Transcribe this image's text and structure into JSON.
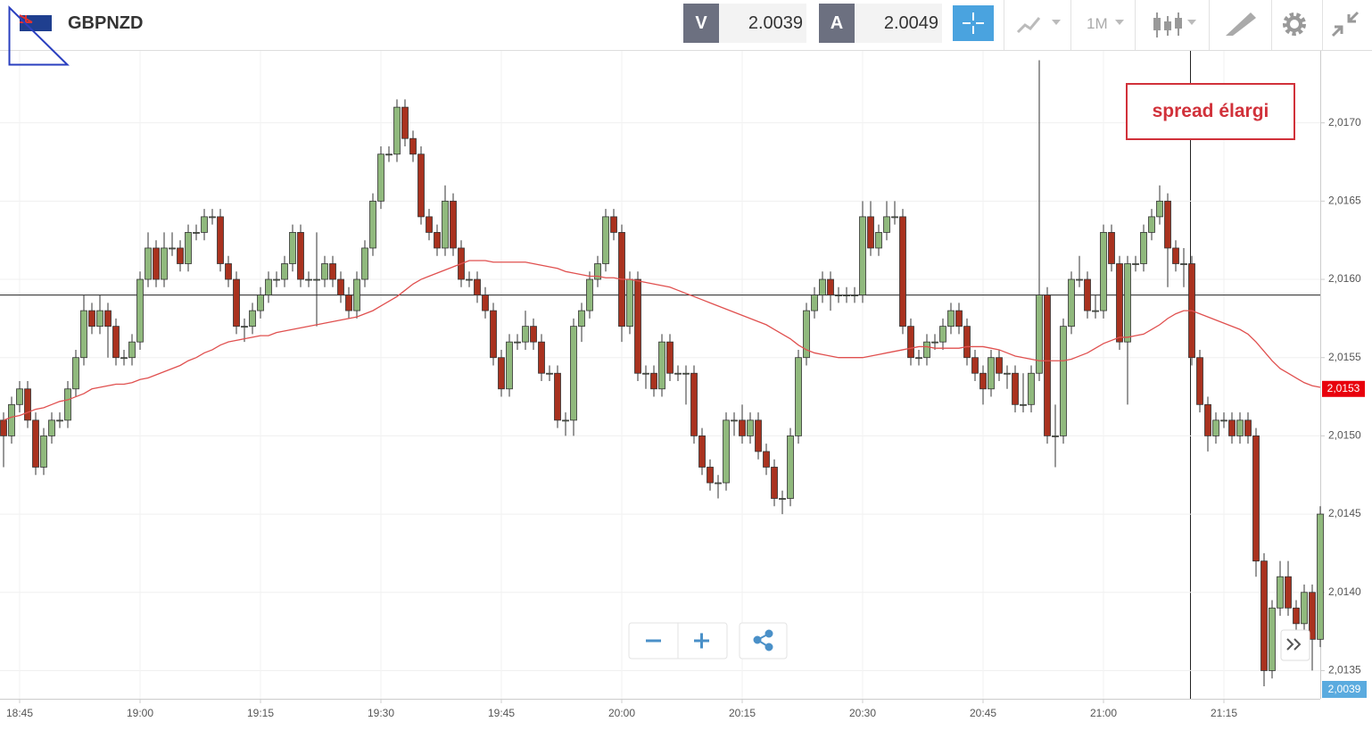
{
  "header": {
    "symbol": "GBPNZD",
    "sell_label": "V",
    "sell_price": "2.0039",
    "buy_label": "A",
    "buy_price": "2.0049",
    "timeframe": "1M"
  },
  "chart_data": {
    "type": "candlestick",
    "categories": [
      null,
      null,
      "18:45",
      null,
      null,
      null,
      null,
      null,
      null,
      null,
      null,
      null,
      null,
      null,
      null,
      null,
      null,
      "19:00",
      null,
      null,
      null,
      null,
      null,
      null,
      null,
      null,
      null,
      null,
      null,
      null,
      null,
      null,
      "19:15",
      null,
      null,
      null,
      null,
      null,
      null,
      null,
      null,
      null,
      null,
      null,
      null,
      null,
      null,
      "19:30",
      null,
      null,
      null,
      null,
      null,
      null,
      null,
      null,
      null,
      null,
      null,
      null,
      null,
      null,
      "19:45",
      null,
      null,
      null,
      null,
      null,
      null,
      null,
      null,
      null,
      null,
      null,
      null,
      null,
      null,
      "20:00",
      null,
      null,
      null,
      null,
      null,
      null,
      null,
      null,
      null,
      null,
      null,
      null,
      null,
      null,
      "20:15",
      null,
      null,
      null,
      null,
      null,
      null,
      null,
      null,
      null,
      null,
      null,
      null,
      null,
      null,
      "20:30",
      null,
      null,
      null,
      null,
      null,
      null,
      null,
      null,
      null,
      null,
      null,
      null,
      null,
      null,
      "20:45",
      null,
      null,
      null,
      null,
      null,
      null,
      null,
      null,
      null,
      null,
      null,
      null,
      null,
      null,
      "21:00",
      null,
      null,
      null,
      null,
      null,
      null,
      null,
      null,
      null,
      null,
      null,
      null,
      null,
      null,
      "21:15",
      null,
      null,
      null,
      null,
      null,
      null,
      null,
      null,
      null,
      null,
      null,
      null
    ],
    "open": [
      2.0151,
      2.015,
      2.0152,
      2.0153,
      2.0151,
      2.0148,
      2.015,
      2.0151,
      2.0151,
      2.0153,
      2.0155,
      2.0158,
      2.0157,
      2.0158,
      2.0157,
      2.0155,
      2.0155,
      2.0156,
      2.016,
      2.0162,
      2.016,
      2.0162,
      2.0162,
      2.0161,
      2.0163,
      2.0163,
      2.0164,
      2.0164,
      2.0161,
      2.016,
      2.0157,
      2.0157,
      2.0158,
      2.0159,
      2.016,
      2.016,
      2.0161,
      2.0163,
      2.016,
      2.016,
      2.016,
      2.0161,
      2.016,
      2.0159,
      2.0158,
      2.016,
      2.0162,
      2.0165,
      2.0168,
      2.0168,
      2.0171,
      2.0169,
      2.0168,
      2.0164,
      2.0163,
      2.0162,
      2.0165,
      2.0162,
      2.016,
      2.016,
      2.0159,
      2.0158,
      2.0155,
      2.0153,
      2.0156,
      2.0156,
      2.0157,
      2.0156,
      2.0154,
      2.0154,
      2.0151,
      2.0151,
      2.0157,
      2.0158,
      2.016,
      2.0161,
      2.0164,
      2.0163,
      2.0157,
      2.016,
      2.0154,
      2.0154,
      2.0153,
      2.0156,
      2.0154,
      2.0154,
      2.0154,
      2.015,
      2.0148,
      2.0147,
      2.0147,
      2.0151,
      2.0151,
      2.015,
      2.0151,
      2.0149,
      2.0148,
      2.0146,
      2.0146,
      2.015,
      2.0155,
      2.0158,
      2.0159,
      2.016,
      2.0159,
      2.0159,
      2.0159,
      2.0159,
      2.0164,
      2.0162,
      2.0163,
      2.0164,
      2.0164,
      2.0157,
      2.0155,
      2.0155,
      2.0156,
      2.0156,
      2.0157,
      2.0158,
      2.0157,
      2.0155,
      2.0154,
      2.0153,
      2.0155,
      2.0154,
      2.0154,
      2.0152,
      2.0152,
      2.0154,
      2.0159,
      2.015,
      2.015,
      2.0157,
      2.016,
      2.016,
      2.0158,
      2.0158,
      2.0163,
      2.0161,
      2.0156,
      2.0161,
      2.0161,
      2.0163,
      2.0164,
      2.0165,
      2.0162,
      2.0161,
      2.0161,
      2.0155,
      2.0152,
      2.015,
      2.0151,
      2.0151,
      2.015,
      2.0151,
      2.015,
      2.0142,
      2.0135,
      2.0139,
      2.0141,
      2.0139,
      2.0138,
      2.014,
      2.0137
    ],
    "high": [
      2.01515,
      2.01525,
      2.01535,
      2.01535,
      2.01515,
      2.01505,
      2.01515,
      2.01515,
      2.01535,
      2.01555,
      2.0159,
      2.01585,
      2.0159,
      2.01585,
      2.01575,
      2.01555,
      2.01565,
      2.01605,
      2.0163,
      2.01625,
      2.0163,
      2.0163,
      2.01625,
      2.01635,
      2.01635,
      2.01645,
      2.01645,
      2.01645,
      2.01615,
      2.01605,
      2.01575,
      2.01585,
      2.01595,
      2.01605,
      2.01605,
      2.01615,
      2.01635,
      2.01635,
      2.01605,
      2.0163,
      2.01615,
      2.01615,
      2.01605,
      2.01595,
      2.01605,
      2.01625,
      2.01655,
      2.01685,
      2.01685,
      2.01715,
      2.01715,
      2.01695,
      2.01685,
      2.01645,
      2.01635,
      2.0166,
      2.01655,
      2.01625,
      2.01605,
      2.01605,
      2.01595,
      2.01585,
      2.01555,
      2.01565,
      2.01565,
      2.0158,
      2.01575,
      2.01565,
      2.01545,
      2.01545,
      2.01515,
      2.01575,
      2.01585,
      2.01605,
      2.01615,
      2.01645,
      2.01645,
      2.01635,
      2.01605,
      2.01605,
      2.01545,
      2.01545,
      2.01565,
      2.01565,
      2.01545,
      2.01545,
      2.01545,
      2.01505,
      2.01485,
      2.01475,
      2.01515,
      2.01515,
      2.0152,
      2.01515,
      2.01515,
      2.01495,
      2.01485,
      2.01465,
      2.01505,
      2.01555,
      2.01585,
      2.01595,
      2.01605,
      2.01605,
      2.01595,
      2.01595,
      2.01595,
      2.0165,
      2.0165,
      2.01635,
      2.0165,
      2.0165,
      2.01645,
      2.01575,
      2.01555,
      2.01565,
      2.01565,
      2.01575,
      2.01585,
      2.01585,
      2.01575,
      2.01555,
      2.01545,
      2.01555,
      2.01555,
      2.01545,
      2.01545,
      2.0154,
      2.01545,
      2.0174,
      2.01595,
      2.0152,
      2.01575,
      2.01605,
      2.01615,
      2.01605,
      2.0159,
      2.01635,
      2.01635,
      2.01615,
      2.01615,
      2.01615,
      2.01635,
      2.01645,
      2.0166,
      2.01655,
      2.01625,
      2.0162,
      2.01615,
      2.01555,
      2.01525,
      2.01515,
      2.01515,
      2.01515,
      2.01515,
      2.01515,
      2.01505,
      2.01425,
      2.01395,
      2.0142,
      2.0142,
      2.01395,
      2.01405,
      2.01405,
      2.01455
    ],
    "low": [
      2.0148,
      2.01495,
      2.01515,
      2.01505,
      2.01475,
      2.01475,
      2.01495,
      2.01505,
      2.01505,
      2.01525,
      2.01545,
      2.01565,
      2.01565,
      2.0155,
      2.01545,
      2.01545,
      2.01545,
      2.01555,
      2.01595,
      2.01595,
      2.01595,
      2.01615,
      2.01605,
      2.01605,
      2.01625,
      2.01625,
      2.01635,
      2.01605,
      2.01595,
      2.01565,
      2.0156,
      2.01565,
      2.01575,
      2.01585,
      2.01595,
      2.01595,
      2.01605,
      2.01595,
      2.01595,
      2.0157,
      2.01595,
      2.01595,
      2.01585,
      2.01575,
      2.01575,
      2.01595,
      2.01615,
      2.01645,
      2.01675,
      2.01675,
      2.01685,
      2.01675,
      2.01635,
      2.01625,
      2.01615,
      2.01615,
      2.01615,
      2.01595,
      2.01595,
      2.01585,
      2.01575,
      2.01545,
      2.01525,
      2.01525,
      2.01555,
      2.01555,
      2.01555,
      2.01535,
      2.01535,
      2.01505,
      2.015,
      2.015,
      2.0156,
      2.01575,
      2.01595,
      2.01605,
      2.01625,
      2.0156,
      2.01565,
      2.01535,
      2.0153,
      2.01525,
      2.01525,
      2.01535,
      2.01535,
      2.0152,
      2.01495,
      2.01475,
      2.01465,
      2.0146,
      2.01465,
      2.015,
      2.01495,
      2.01495,
      2.01485,
      2.01475,
      2.01455,
      2.0145,
      2.01455,
      2.01495,
      2.01545,
      2.01575,
      2.01585,
      2.0158,
      2.01585,
      2.01585,
      2.01585,
      2.01585,
      2.01615,
      2.01615,
      2.01625,
      2.01635,
      2.01565,
      2.01545,
      2.01545,
      2.01545,
      2.01555,
      2.01555,
      2.01565,
      2.01565,
      2.01545,
      2.01535,
      2.0152,
      2.01525,
      2.01535,
      2.0153,
      2.01515,
      2.01515,
      2.01515,
      2.01535,
      2.01495,
      2.0148,
      2.01495,
      2.01565,
      2.01595,
      2.01575,
      2.01575,
      2.01575,
      2.01605,
      2.01555,
      2.0152,
      2.01605,
      2.01605,
      2.01625,
      2.01635,
      2.01595,
      2.01605,
      2.01595,
      2.01545,
      2.01515,
      2.0149,
      2.01495,
      2.01505,
      2.01495,
      2.01495,
      2.01495,
      2.0141,
      2.0134,
      2.01345,
      2.01385,
      2.01385,
      2.01365,
      2.01375,
      2.0135,
      2.01365
    ],
    "close": [
      2.015,
      2.0152,
      2.0153,
      2.0151,
      2.0148,
      2.015,
      2.0151,
      2.0151,
      2.0153,
      2.0155,
      2.0158,
      2.0157,
      2.0158,
      2.0157,
      2.0155,
      2.0155,
      2.0156,
      2.016,
      2.0162,
      2.016,
      2.0162,
      2.0162,
      2.0161,
      2.0163,
      2.0163,
      2.0164,
      2.0164,
      2.0161,
      2.016,
      2.0157,
      2.0157,
      2.0158,
      2.0159,
      2.016,
      2.016,
      2.0161,
      2.0163,
      2.016,
      2.016,
      2.016,
      2.0161,
      2.016,
      2.0159,
      2.0158,
      2.016,
      2.0162,
      2.0165,
      2.0168,
      2.0168,
      2.0171,
      2.0169,
      2.0168,
      2.0164,
      2.0163,
      2.0162,
      2.0165,
      2.0162,
      2.016,
      2.016,
      2.0159,
      2.0158,
      2.0155,
      2.0153,
      2.0156,
      2.0156,
      2.0157,
      2.0156,
      2.0154,
      2.0154,
      2.0151,
      2.0151,
      2.0157,
      2.0158,
      2.016,
      2.0161,
      2.0164,
      2.0163,
      2.0157,
      2.016,
      2.0154,
      2.0154,
      2.0153,
      2.0156,
      2.0154,
      2.0154,
      2.0154,
      2.015,
      2.0148,
      2.0147,
      2.0147,
      2.0151,
      2.0151,
      2.015,
      2.0151,
      2.0149,
      2.0148,
      2.0146,
      2.0146,
      2.015,
      2.0155,
      2.0158,
      2.0159,
      2.016,
      2.0159,
      2.0159,
      2.0159,
      2.0159,
      2.0164,
      2.0162,
      2.0163,
      2.0164,
      2.0164,
      2.0157,
      2.0155,
      2.0155,
      2.0156,
      2.0156,
      2.0157,
      2.0158,
      2.0157,
      2.0155,
      2.0154,
      2.0153,
      2.0155,
      2.0154,
      2.0154,
      2.0152,
      2.0152,
      2.0154,
      2.0159,
      2.015,
      2.015,
      2.0157,
      2.016,
      2.016,
      2.0158,
      2.0158,
      2.0163,
      2.0161,
      2.0156,
      2.0161,
      2.0161,
      2.0163,
      2.0164,
      2.0165,
      2.0162,
      2.0161,
      2.0161,
      2.0155,
      2.0152,
      2.015,
      2.0151,
      2.0151,
      2.015,
      2.0151,
      2.015,
      2.0142,
      2.0135,
      2.0139,
      2.0141,
      2.0139,
      2.0138,
      2.014,
      2.0137,
      2.0145
    ],
    "up_color": "#90b97d",
    "down_color": "#a9321f",
    "ma": {
      "color": "#e0504f",
      "values": [
        2.0151,
        2.01512,
        2.01513,
        2.01515,
        2.01517,
        2.01518,
        2.0152,
        2.01522,
        2.01523,
        2.01525,
        2.01527,
        2.0153,
        2.01531,
        2.01532,
        2.01533,
        2.01533,
        2.01534,
        2.01536,
        2.01537,
        2.01539,
        2.01541,
        2.01543,
        2.01545,
        2.01548,
        2.0155,
        2.01553,
        2.01555,
        2.01558,
        2.0156,
        2.01561,
        2.01562,
        2.01563,
        2.01564,
        2.01564,
        2.01566,
        2.01567,
        2.01568,
        2.01569,
        2.0157,
        2.01571,
        2.01572,
        2.01573,
        2.01574,
        2.01575,
        2.01576,
        2.01578,
        2.0158,
        2.01583,
        2.01586,
        2.01589,
        2.01593,
        2.01597,
        2.016,
        2.01602,
        2.01604,
        2.01606,
        2.01608,
        2.0161,
        2.01612,
        2.01612,
        2.01612,
        2.01611,
        2.01611,
        2.01611,
        2.01611,
        2.01611,
        2.0161,
        2.01609,
        2.01608,
        2.01607,
        2.01605,
        2.01604,
        2.01603,
        2.01602,
        2.01602,
        2.01601,
        2.01601,
        2.016,
        2.016,
        2.01599,
        2.01598,
        2.01597,
        2.01596,
        2.01595,
        2.01593,
        2.01591,
        2.01589,
        2.01587,
        2.01585,
        2.01583,
        2.01581,
        2.01579,
        2.01577,
        2.01575,
        2.01573,
        2.01571,
        2.01568,
        2.01565,
        2.01562,
        2.01558,
        2.01555,
        2.01553,
        2.01552,
        2.01551,
        2.0155,
        2.0155,
        2.0155,
        2.0155,
        2.01551,
        2.01552,
        2.01553,
        2.01554,
        2.01555,
        2.01556,
        2.01557,
        2.01557,
        2.01556,
        2.01556,
        2.01556,
        2.01556,
        2.01557,
        2.01557,
        2.01557,
        2.01556,
        2.01555,
        2.01553,
        2.01551,
        2.0155,
        2.01549,
        2.01548,
        2.01548,
        2.01548,
        2.01548,
        2.01549,
        2.01551,
        2.01553,
        2.01556,
        2.01559,
        2.01561,
        2.01563,
        2.01563,
        2.01564,
        2.01565,
        2.01568,
        2.01571,
        2.01575,
        2.01578,
        2.0158,
        2.0158,
        2.01578,
        2.01576,
        2.01574,
        2.01572,
        2.0157,
        2.01568,
        2.01565,
        2.0156,
        2.01554,
        2.01548,
        2.01543,
        2.0154,
        2.01537,
        2.01534,
        2.01532,
        2.01531
      ]
    },
    "ma_tag": {
      "value": 2.0153,
      "label": "2,0153"
    },
    "bid_tag": "2,0039",
    "crosshair_y": 2.0159,
    "annotation": "spread élargi",
    "ylim": [
      2.01332,
      2.01746
    ],
    "yticks": [
      {
        "value": 2.0135,
        "label": "2,0135"
      },
      {
        "value": 2.014,
        "label": "2,0140"
      },
      {
        "value": 2.0145,
        "label": "2,0145"
      },
      {
        "value": 2.015,
        "label": "2,0150"
      },
      {
        "value": 2.0155,
        "label": "2,0155"
      },
      {
        "value": 2.016,
        "label": "2,0160"
      },
      {
        "value": 2.0165,
        "label": "2,0165"
      },
      {
        "value": 2.017,
        "label": "2,0170"
      }
    ],
    "grid": true
  }
}
